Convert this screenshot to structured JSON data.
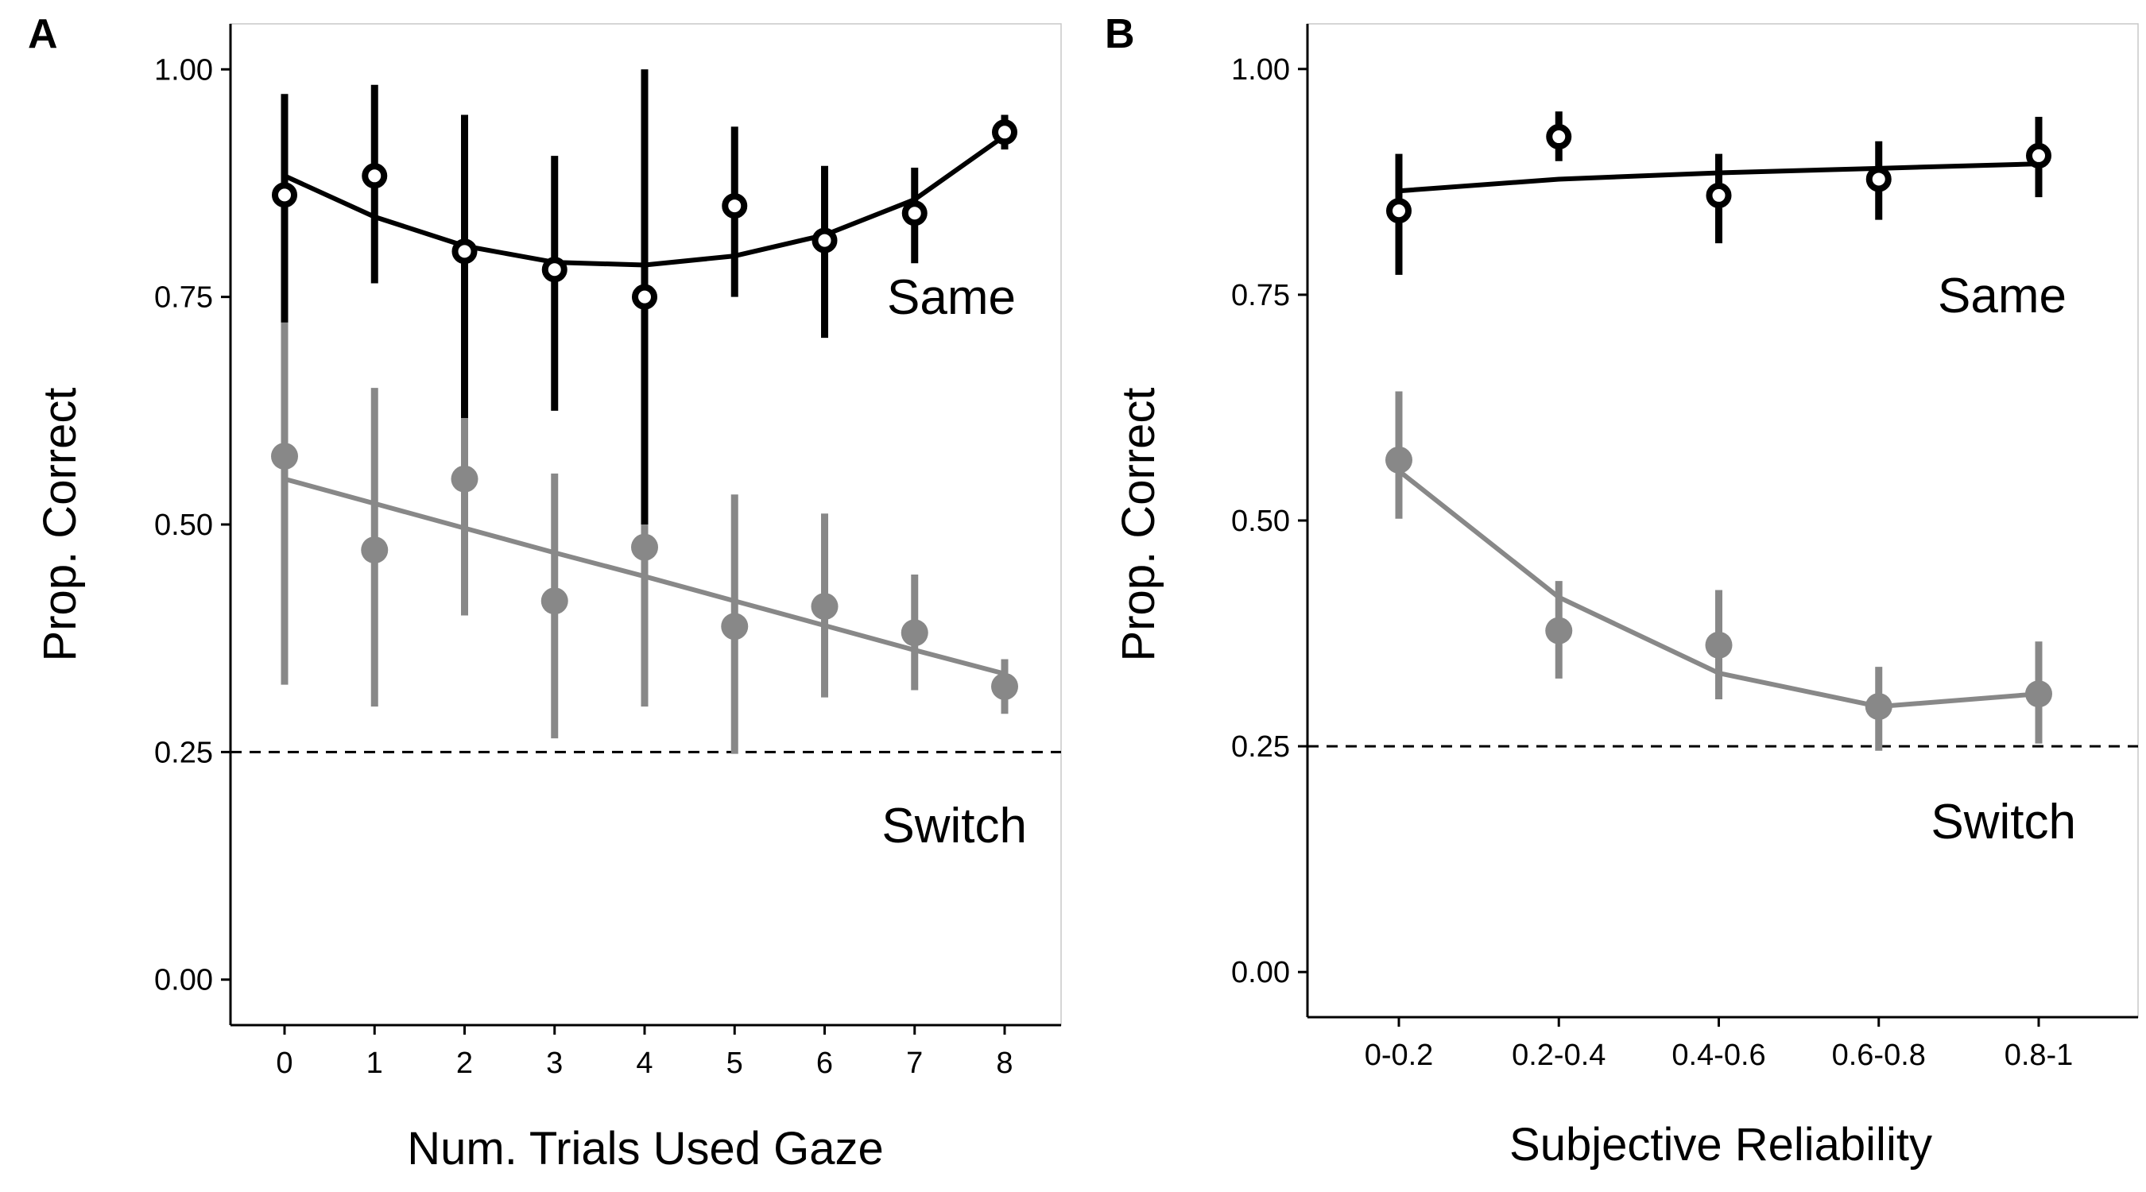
{
  "chart_data": [
    {
      "panel": "A",
      "type": "scatter",
      "xlabel": "Num. Trials Used Gaze",
      "ylabel": "Prop. Correct",
      "categories": [
        "0",
        "1",
        "2",
        "3",
        "4",
        "5",
        "6",
        "7",
        "8"
      ],
      "ylim": [
        -0.05,
        1.05
      ],
      "yticks": [
        "0.00",
        "0.25",
        "0.50",
        "0.75",
        "1.00"
      ],
      "chance_line": 0.25,
      "grid": false,
      "series": [
        {
          "name": "Same",
          "color": "#000000",
          "marker": "open-circle",
          "values": [
            0.862,
            0.883,
            0.8,
            0.78,
            0.75,
            0.85,
            0.812,
            0.842,
            0.931
          ],
          "lower": [
            0.722,
            0.765,
            0.617,
            0.625,
            0.5,
            0.75,
            0.705,
            0.787,
            0.912
          ],
          "upper": [
            0.973,
            0.983,
            0.95,
            0.905,
            1.0,
            0.937,
            0.894,
            0.892,
            0.95
          ],
          "fit": [
            0.883,
            0.838,
            0.806,
            0.788,
            0.785,
            0.795,
            0.818,
            0.857,
            0.927
          ]
        },
        {
          "name": "Switch",
          "color": "#888888",
          "marker": "filled-circle",
          "values": [
            0.575,
            0.472,
            0.55,
            0.416,
            0.475,
            0.388,
            0.41,
            0.381,
            0.322
          ],
          "lower": [
            0.324,
            0.3,
            0.4,
            0.265,
            0.3,
            0.248,
            0.31,
            0.318,
            0.292
          ],
          "upper": [
            0.805,
            0.65,
            0.683,
            0.556,
            0.65,
            0.533,
            0.512,
            0.445,
            0.352
          ],
          "fit": [
            0.55,
            0.523,
            0.496,
            0.469,
            0.443,
            0.416,
            0.389,
            0.362,
            0.336
          ]
        }
      ]
    },
    {
      "panel": "B",
      "type": "scatter",
      "xlabel": "Subjective Reliability",
      "ylabel": "Prop. Correct",
      "categories": [
        "0-0.2",
        "0.2-0.4",
        "0.4-0.6",
        "0.6-0.8",
        "0.8-1"
      ],
      "ylim": [
        -0.05,
        1.05
      ],
      "yticks": [
        "0.00",
        "0.25",
        "0.50",
        "0.75",
        "1.00"
      ],
      "chance_line": 0.25,
      "grid": false,
      "series": [
        {
          "name": "Same",
          "color": "#000000",
          "marker": "open-circle",
          "values": [
            0.843,
            0.925,
            0.86,
            0.878,
            0.904
          ],
          "lower": [
            0.772,
            0.898,
            0.807,
            0.833,
            0.858
          ],
          "upper": [
            0.906,
            0.953,
            0.906,
            0.92,
            0.947
          ],
          "fit": [
            0.865,
            0.878,
            0.885,
            0.89,
            0.895
          ]
        },
        {
          "name": "Switch",
          "color": "#888888",
          "marker": "filled-circle",
          "values": [
            0.567,
            0.378,
            0.362,
            0.294,
            0.308
          ],
          "lower": [
            0.502,
            0.325,
            0.302,
            0.245,
            0.253
          ],
          "upper": [
            0.643,
            0.433,
            0.423,
            0.338,
            0.366
          ],
          "fit": [
            0.555,
            0.415,
            0.331,
            0.294,
            0.308
          ]
        }
      ]
    }
  ]
}
